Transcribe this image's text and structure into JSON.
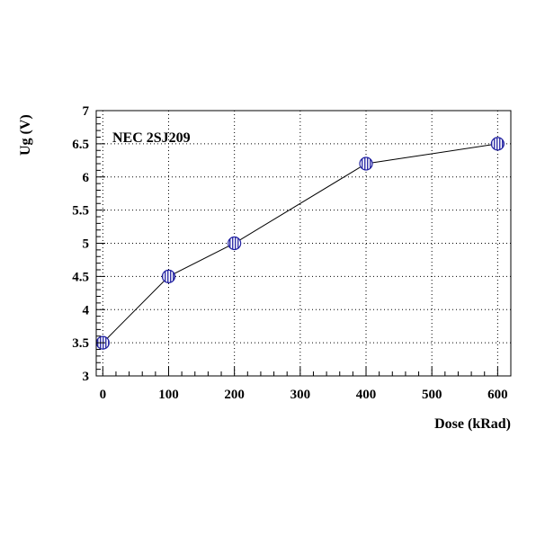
{
  "chart_data": {
    "type": "line",
    "title": "",
    "annotation": "NEC 2SJ209",
    "xlabel": "Dose (kRad)",
    "ylabel": "Ug (V)",
    "xlim": [
      -10,
      620
    ],
    "ylim": [
      3,
      7
    ],
    "xticks": [
      0,
      100,
      200,
      300,
      400,
      500,
      600
    ],
    "yticks": [
      3,
      3.5,
      4,
      4.5,
      5,
      5.5,
      6,
      6.5,
      7
    ],
    "grid": true,
    "marker_color": "#1f1fa0",
    "series": [
      {
        "x": [
          0,
          100,
          200,
          400,
          600
        ],
        "y": [
          3.5,
          4.5,
          5.0,
          6.2,
          6.5
        ]
      }
    ]
  }
}
